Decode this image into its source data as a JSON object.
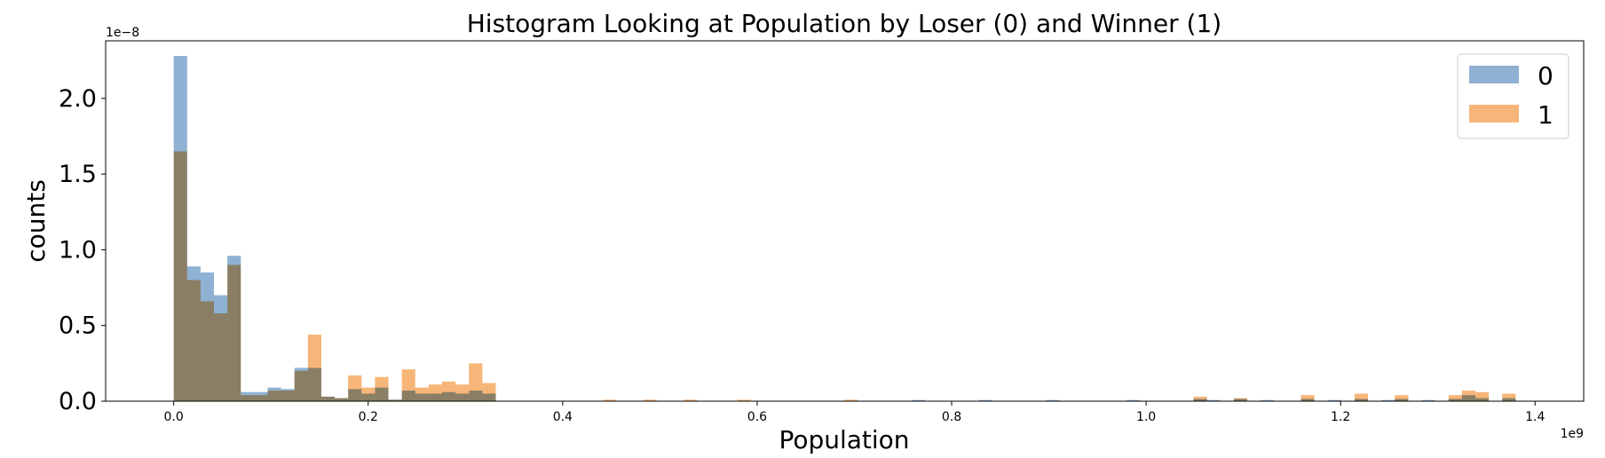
{
  "chart_data": {
    "type": "bar",
    "subtype": "overlaid-histogram",
    "title": "Histogram Looking at Population by Loser (0) and Winner (1)",
    "xlabel": "Population",
    "ylabel": "counts",
    "x_offset_label": "1e9",
    "y_offset_label": "1e−8",
    "xlim": [
      -0.07,
      1.45
    ],
    "ylim": [
      0,
      2.38
    ],
    "xticks": [
      0.0,
      0.2,
      0.4,
      0.6,
      0.8,
      1.0,
      1.2,
      1.4
    ],
    "xtick_labels": [
      "0.0",
      "0.2",
      "0.4",
      "0.6",
      "0.8",
      "1.0",
      "1.2",
      "1.4"
    ],
    "yticks": [
      0.0,
      0.5,
      1.0,
      1.5,
      2.0
    ],
    "ytick_labels": [
      "0.0",
      "0.5",
      "1.0",
      "1.5",
      "2.0"
    ],
    "grid": false,
    "legend_position": "top-right",
    "series": [
      {
        "name": "0",
        "color": "#8fb1d4",
        "bins": [
          [
            0.0,
            2.28
          ],
          [
            0.0138,
            0.89
          ],
          [
            0.0276,
            0.85
          ],
          [
            0.0414,
            0.7
          ],
          [
            0.0552,
            0.96
          ],
          [
            0.069,
            0.06
          ],
          [
            0.0828,
            0.06
          ],
          [
            0.0966,
            0.09
          ],
          [
            0.1104,
            0.08
          ],
          [
            0.1242,
            0.22
          ],
          [
            0.138,
            0.22
          ],
          [
            0.1518,
            0.03
          ],
          [
            0.1656,
            0.02
          ],
          [
            0.1794,
            0.08
          ],
          [
            0.1932,
            0.05
          ],
          [
            0.207,
            0.09
          ],
          [
            0.2208,
            0.01
          ],
          [
            0.2346,
            0.07
          ],
          [
            0.2484,
            0.05
          ],
          [
            0.2622,
            0.05
          ],
          [
            0.276,
            0.06
          ],
          [
            0.2898,
            0.05
          ],
          [
            0.3036,
            0.07
          ],
          [
            0.3174,
            0.05
          ],
          [
            0.759,
            0.008
          ],
          [
            0.828,
            0.008
          ],
          [
            0.897,
            0.008
          ],
          [
            0.9798,
            0.008
          ],
          [
            1.0488,
            0.015
          ],
          [
            1.0626,
            0.008
          ],
          [
            1.0902,
            0.015
          ],
          [
            1.1178,
            0.008
          ],
          [
            1.1592,
            0.015
          ],
          [
            1.1868,
            0.008
          ],
          [
            1.2144,
            0.015
          ],
          [
            1.242,
            0.008
          ],
          [
            1.2558,
            0.015
          ],
          [
            1.2834,
            0.008
          ],
          [
            1.311,
            0.015
          ],
          [
            1.3248,
            0.04
          ],
          [
            1.3386,
            0.02
          ],
          [
            1.3662,
            0.02
          ]
        ]
      },
      {
        "name": "1",
        "color": "#f7b679",
        "bins": [
          [
            0.0,
            1.65
          ],
          [
            0.0138,
            0.8
          ],
          [
            0.0276,
            0.66
          ],
          [
            0.0414,
            0.58
          ],
          [
            0.0552,
            0.9
          ],
          [
            0.069,
            0.04
          ],
          [
            0.0828,
            0.04
          ],
          [
            0.0966,
            0.07
          ],
          [
            0.1104,
            0.07
          ],
          [
            0.1242,
            0.2
          ],
          [
            0.138,
            0.44
          ],
          [
            0.1518,
            0.03
          ],
          [
            0.1656,
            0.02
          ],
          [
            0.1794,
            0.17
          ],
          [
            0.1932,
            0.09
          ],
          [
            0.207,
            0.16
          ],
          [
            0.2208,
            0.01
          ],
          [
            0.2346,
            0.21
          ],
          [
            0.2484,
            0.09
          ],
          [
            0.2622,
            0.11
          ],
          [
            0.276,
            0.13
          ],
          [
            0.2898,
            0.11
          ],
          [
            0.3036,
            0.25
          ],
          [
            0.3174,
            0.12
          ],
          [
            0.4416,
            0.01
          ],
          [
            0.483,
            0.01
          ],
          [
            0.5244,
            0.01
          ],
          [
            0.5796,
            0.01
          ],
          [
            0.69,
            0.01
          ],
          [
            1.0488,
            0.03
          ],
          [
            1.0902,
            0.02
          ],
          [
            1.1592,
            0.04
          ],
          [
            1.2144,
            0.05
          ],
          [
            1.2558,
            0.04
          ],
          [
            1.311,
            0.04
          ],
          [
            1.3248,
            0.07
          ],
          [
            1.3386,
            0.06
          ],
          [
            1.3662,
            0.05
          ]
        ]
      }
    ],
    "bin_width": 0.0138
  }
}
